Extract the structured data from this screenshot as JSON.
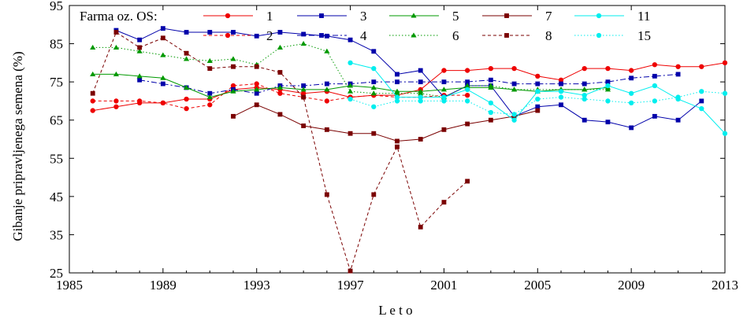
{
  "chart_data": {
    "type": "line",
    "xlabel": "L e t o",
    "ylabel": "Gibanje pripravljenega semena (%)",
    "xlim": [
      1985,
      2013
    ],
    "ylim": [
      25,
      95
    ],
    "xticks": [
      1985,
      1989,
      1993,
      1997,
      2001,
      2005,
      2009,
      2013
    ],
    "yticks": [
      25,
      35,
      45,
      55,
      65,
      75,
      85,
      95
    ],
    "grid": false,
    "legend_title": "Farma oz. OS:",
    "legend_placement": "top",
    "series": [
      {
        "name": "1",
        "color": "#ee0000",
        "dash": "solid",
        "marker": "circle",
        "x": [
          1986,
          1987,
          1988,
          1989,
          1990,
          1991,
          1992,
          1993,
          1994,
          1995,
          1996,
          1997,
          1998,
          1999,
          2000,
          2001,
          2002,
          2003,
          2004,
          2005,
          2006,
          2007,
          2008,
          2009,
          2010,
          2011,
          2012,
          2013
        ],
        "y": [
          67.5,
          68.5,
          69.5,
          69.5,
          70.5,
          70.5,
          73,
          73.5,
          73,
          72,
          72.5,
          71,
          71.5,
          71.5,
          73,
          78,
          78,
          78.5,
          78.5,
          76.5,
          75.5,
          78.5,
          78.5,
          78,
          79.5,
          79,
          79,
          80
        ]
      },
      {
        "name": "2",
        "color": "#ee0000",
        "dash": "dashed",
        "marker": "circle",
        "x": [
          1986,
          1987,
          1988,
          1989,
          1990,
          1991,
          1992,
          1993,
          1994,
          1995,
          1996,
          1997,
          1998,
          1999,
          2000,
          2001,
          2002
        ],
        "y": [
          70,
          70,
          70,
          69.5,
          68,
          69,
          74,
          74.5,
          72,
          71,
          70,
          71,
          71.5,
          71,
          71,
          71.5,
          71.5
        ]
      },
      {
        "name": "3",
        "color": "#0000aa",
        "dash": "solid",
        "marker": "square",
        "x": [
          1987,
          1988,
          1989,
          1990,
          1991,
          1992,
          1993,
          1994,
          1995,
          1996,
          1997,
          1998,
          1999,
          2000,
          2001,
          2002,
          2003,
          2004,
          2005,
          2006,
          2007,
          2008,
          2009,
          2010,
          2011,
          2012
        ],
        "y": [
          88.5,
          86,
          89,
          88,
          88,
          88,
          87,
          88,
          87.5,
          87,
          86,
          83,
          77,
          78,
          71,
          74,
          74,
          66,
          68.5,
          69,
          65,
          64.5,
          63,
          66,
          65,
          70
        ]
      },
      {
        "name": "4",
        "color": "#0000aa",
        "dash": "dashdot",
        "marker": "square",
        "x": [
          1988,
          1989,
          1990,
          1991,
          1992,
          1993,
          1994,
          1995,
          1996,
          1997,
          1998,
          1999,
          2000,
          2001,
          2002,
          2003,
          2004,
          2005,
          2006,
          2007,
          2008,
          2009,
          2010,
          2011
        ],
        "y": [
          75.5,
          74.5,
          73.5,
          72,
          73,
          72,
          74,
          74,
          74.5,
          74.5,
          75,
          75,
          75,
          75,
          75,
          75.5,
          74.5,
          74.5,
          74.5,
          74.5,
          75,
          76,
          76.5,
          77
        ]
      },
      {
        "name": "5",
        "color": "#009900",
        "dash": "solid",
        "marker": "triangle",
        "x": [
          1986,
          1987,
          1988,
          1989,
          1990,
          1991,
          1992,
          1993,
          1994,
          1995,
          1996,
          1997,
          1998,
          1999,
          2000,
          2001,
          2002,
          2003,
          2004,
          2005,
          2006,
          2007,
          2008
        ],
        "y": [
          77,
          77,
          76.5,
          76,
          73.5,
          71,
          72.5,
          73,
          73.5,
          73,
          73,
          74,
          73.5,
          72.5,
          72.5,
          73,
          73.5,
          73.5,
          73,
          72.5,
          73,
          73,
          73.5
        ]
      },
      {
        "name": "6",
        "color": "#009900",
        "dash": "dotted",
        "marker": "triangle",
        "x": [
          1986,
          1987,
          1988,
          1989,
          1990,
          1991,
          1992,
          1993,
          1994,
          1995,
          1996,
          1997,
          1998,
          1999,
          2000,
          2001,
          2002,
          2003,
          2004,
          2005,
          2006,
          2007,
          2008
        ],
        "y": [
          84,
          84,
          83,
          82,
          81,
          80.5,
          81,
          79.5,
          84,
          85,
          83,
          72.5,
          72,
          72,
          72,
          71,
          74,
          74,
          73,
          73,
          73,
          73,
          73
        ]
      },
      {
        "name": "7",
        "color": "#7a0000",
        "dash": "solid",
        "marker": "square",
        "x": [
          1992,
          1993,
          1994,
          1995,
          1996,
          1997,
          1998,
          1999,
          2000,
          2001,
          2002,
          2003,
          2004,
          2005
        ],
        "y": [
          66,
          69,
          66.5,
          63.5,
          62.5,
          61.5,
          61.5,
          59.5,
          60,
          62.5,
          64,
          65,
          66,
          67.5
        ]
      },
      {
        "name": "8",
        "color": "#7a0000",
        "dash": "dashed",
        "marker": "square",
        "x": [
          1986,
          1987,
          1988,
          1989,
          1990,
          1991,
          1992,
          1993,
          1994,
          1995,
          1996,
          1997,
          1998,
          1999,
          2000,
          2001,
          2002
        ],
        "y": [
          72,
          88,
          84,
          86.5,
          82.5,
          78.5,
          79,
          79,
          77.5,
          71,
          45.5,
          25.5,
          45.5,
          58,
          37,
          43.5,
          49
        ]
      },
      {
        "name": "11",
        "color": "#00eeee",
        "dash": "solid",
        "marker": "circle",
        "x": [
          1997,
          1998,
          1999,
          2000,
          2001,
          2002,
          2003,
          2004,
          2005,
          2006,
          2007,
          2008,
          2009,
          2010,
          2011,
          2012,
          2013
        ],
        "y": [
          80,
          78.5,
          71,
          71,
          71,
          73,
          69.5,
          65,
          72.5,
          72.5,
          71.5,
          74,
          72,
          74,
          70.5,
          68,
          61.5
        ]
      },
      {
        "name": "15",
        "color": "#00eeee",
        "dash": "dotted",
        "marker": "circle",
        "x": [
          1997,
          1998,
          1999,
          2000,
          2001,
          2002,
          2003,
          2004,
          2005,
          2006,
          2007,
          2008,
          2009,
          2010,
          2011,
          2012,
          2013
        ],
        "y": [
          70.5,
          68.5,
          70,
          70,
          70,
          70,
          67,
          66.5,
          70.5,
          71,
          70.5,
          70,
          69.5,
          70,
          71,
          72.5,
          72
        ]
      }
    ]
  }
}
